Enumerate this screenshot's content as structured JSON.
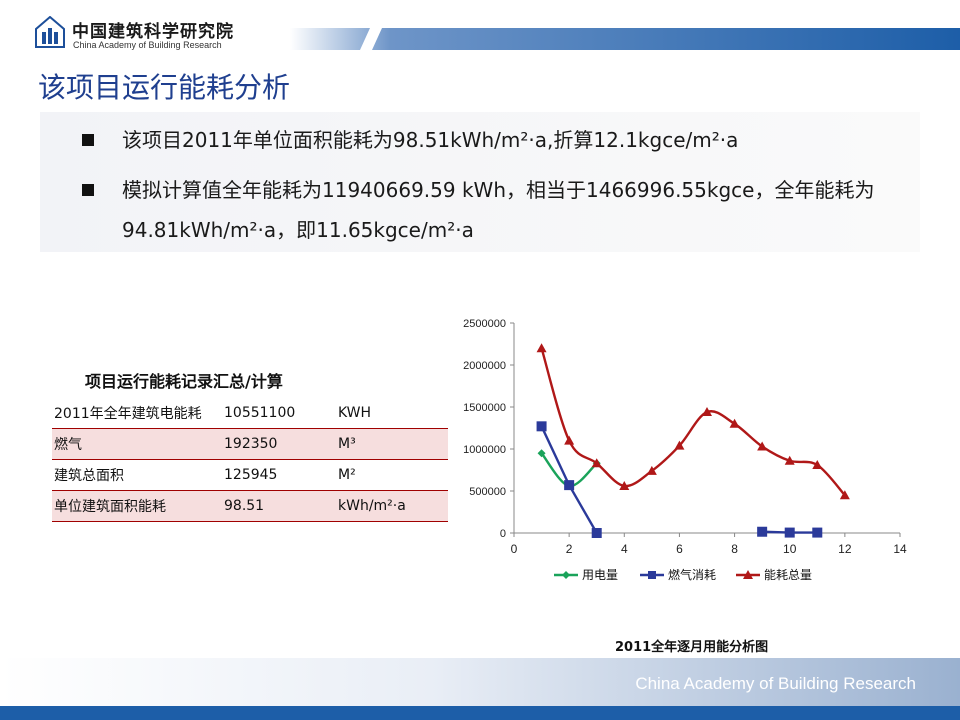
{
  "header": {
    "org_name_cn": "中国建筑科学研究院",
    "org_name_en": "China Academy of Building Research"
  },
  "title": "该项目运行能耗分析",
  "bullets": [
    {
      "text": "该项目2011年单位面积能耗为98.51kWh/m²·a,折算12.1kgce/m²·a"
    },
    {
      "text": "模拟计算值全年能耗为11940669.59 kWh，相当于1466996.55kgce，全年能耗为 94.81kWh/m²·a，即11.65kgce/m²·a"
    }
  ],
  "table": {
    "title": "项目运行能耗记录汇总/计算",
    "rows": [
      {
        "label": "2011年全年建筑电能耗",
        "value": "10551100",
        "unit": "KWH"
      },
      {
        "label": "燃气",
        "value": "192350",
        "unit": "M³"
      },
      {
        "label": "建筑总面积",
        "value": "125945",
        "unit": "M²"
      },
      {
        "label": "单位建筑面积能耗",
        "value": "98.51",
        "unit": "kWh/m²·a"
      }
    ]
  },
  "chart_data": {
    "type": "line",
    "title": "2011全年逐月用能分析图",
    "xlabel": "",
    "ylabel": "",
    "xlim": [
      0,
      14
    ],
    "ylim": [
      0,
      2500000
    ],
    "xticks": [
      0,
      2,
      4,
      6,
      8,
      10,
      12,
      14
    ],
    "yticks": [
      0,
      500000,
      1000000,
      1500000,
      2000000,
      2500000
    ],
    "grid": false,
    "legend": "bottom",
    "series": [
      {
        "name": "用电量",
        "color": "#1aa35a",
        "marker": "diamond",
        "points": [
          [
            1,
            950000
          ],
          [
            2,
            560000
          ],
          [
            3,
            830000
          ]
        ]
      },
      {
        "name": "燃气消耗",
        "color": "#2b3a9a",
        "marker": "square",
        "segments": [
          [
            [
              1,
              1270000
            ],
            [
              2,
              570000
            ],
            [
              3,
              0
            ]
          ],
          [
            [
              9,
              15000
            ],
            [
              10,
              5000
            ],
            [
              11,
              5000
            ]
          ]
        ]
      },
      {
        "name": "能耗总量",
        "color": "#b01818",
        "marker": "triangle",
        "points": [
          [
            1,
            2200000
          ],
          [
            2,
            1100000
          ],
          [
            3,
            830000
          ],
          [
            4,
            560000
          ],
          [
            5,
            740000
          ],
          [
            6,
            1040000
          ],
          [
            7,
            1440000
          ],
          [
            8,
            1300000
          ],
          [
            9,
            1030000
          ],
          [
            10,
            860000
          ],
          [
            11,
            810000
          ],
          [
            12,
            450000
          ]
        ]
      }
    ]
  },
  "footer": {
    "text": "China Academy of Building Research"
  }
}
